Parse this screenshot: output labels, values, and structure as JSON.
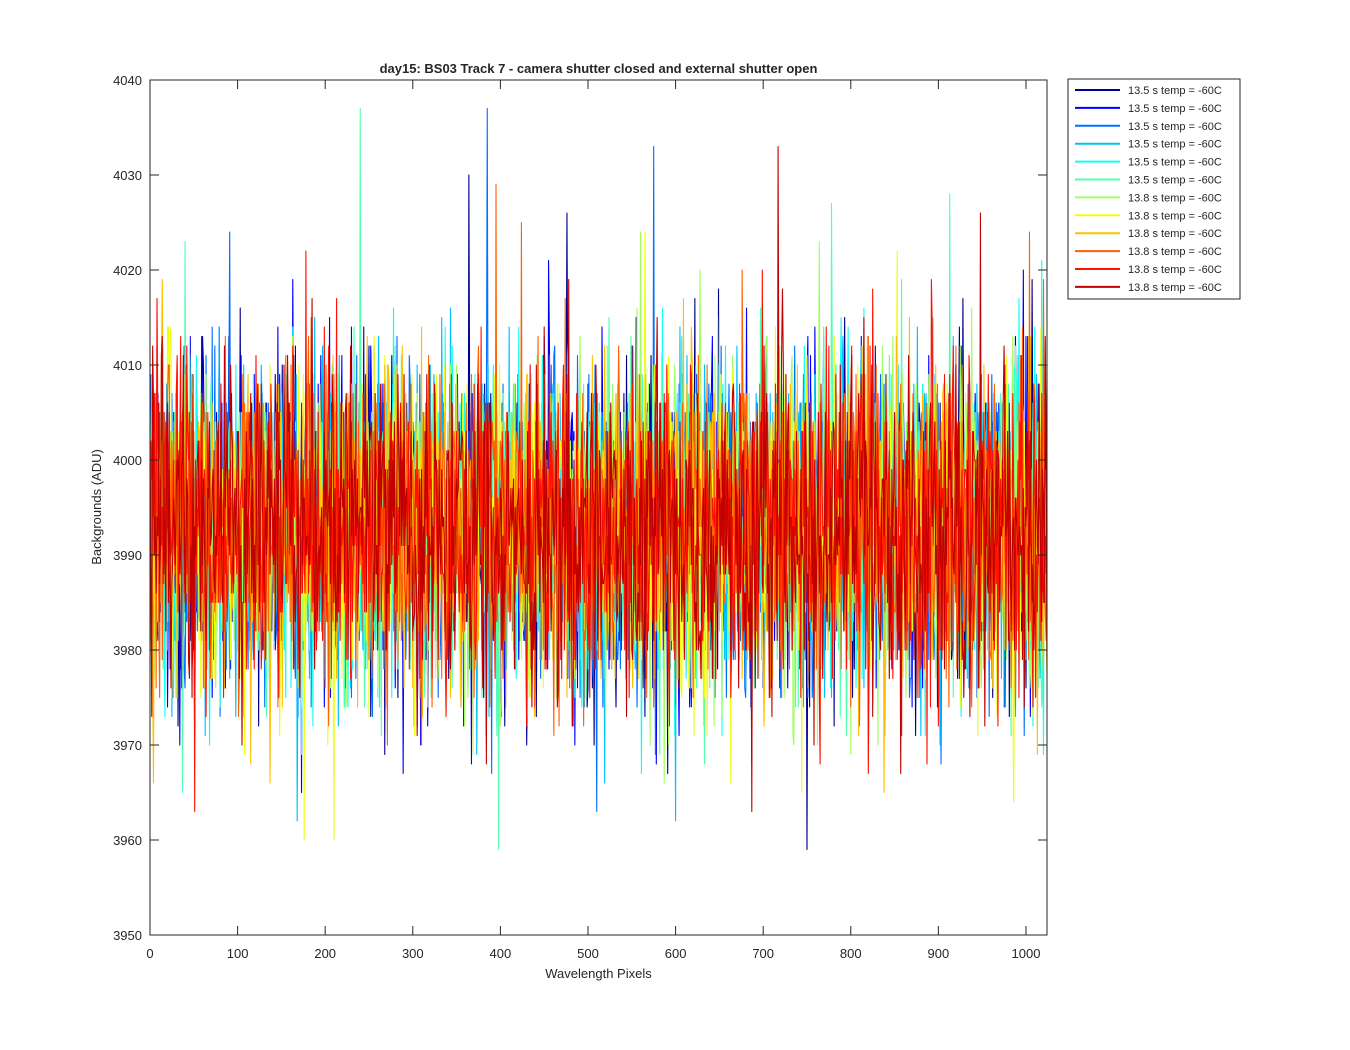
{
  "chart_data": {
    "type": "line",
    "title": "day15: BS03  Track 7 - camera shutter closed and external shutter open",
    "xlabel": "Wavelength Pixels",
    "ylabel": "Backgrounds (ADU)",
    "xlim": [
      0,
      1024
    ],
    "ylim": [
      3950,
      4040
    ],
    "xticks": [
      0,
      100,
      200,
      300,
      400,
      500,
      600,
      700,
      800,
      900,
      1000
    ],
    "yticks": [
      3950,
      3960,
      3970,
      3980,
      3990,
      4000,
      4010,
      4020,
      4030,
      4040
    ],
    "grid": false,
    "legend_position": "outside-top-right",
    "noise_model": {
      "mean": 3993,
      "std": 8.5,
      "min": 3958,
      "max": 4038
    },
    "series": [
      {
        "name": "13.5 s temp = -60C",
        "color": "#00008F",
        "seed": 11,
        "spikes": [
          {
            "x": 364,
            "y": 4030
          },
          {
            "x": 750,
            "y": 3959
          },
          {
            "x": 476,
            "y": 4026
          },
          {
            "x": 507,
            "y": 3970
          }
        ]
      },
      {
        "name": "13.5 s temp = -60C",
        "color": "#0000FF",
        "seed": 23,
        "spikes": [
          {
            "x": 173,
            "y": 3965
          },
          {
            "x": 289,
            "y": 3967
          },
          {
            "x": 455,
            "y": 4021
          }
        ]
      },
      {
        "name": "13.5 s temp = -60C",
        "color": "#0070FF",
        "seed": 37,
        "spikes": [
          {
            "x": 385,
            "y": 4037
          },
          {
            "x": 575,
            "y": 4033
          },
          {
            "x": 510,
            "y": 3963
          },
          {
            "x": 91,
            "y": 4024
          }
        ]
      },
      {
        "name": "13.5 s temp = -60C",
        "color": "#00BFFF",
        "seed": 41,
        "spikes": [
          {
            "x": 600,
            "y": 3962
          },
          {
            "x": 168,
            "y": 3962
          },
          {
            "x": 519,
            "y": 3966
          },
          {
            "x": 333,
            "y": 4015
          }
        ]
      },
      {
        "name": "13.5 s temp = -60C",
        "color": "#10FFEF",
        "seed": 53,
        "spikes": [
          {
            "x": 1018,
            "y": 4021
          },
          {
            "x": 836,
            "y": 3990
          }
        ]
      },
      {
        "name": "13.5 s temp = -60C",
        "color": "#50FFAF",
        "seed": 61,
        "spikes": [
          {
            "x": 240,
            "y": 4037
          },
          {
            "x": 913,
            "y": 4028
          },
          {
            "x": 37,
            "y": 3965
          },
          {
            "x": 778,
            "y": 4027
          },
          {
            "x": 40,
            "y": 4023
          }
        ]
      },
      {
        "name": "13.8 s temp = -60C",
        "color": "#9FFF60",
        "seed": 71,
        "spikes": [
          {
            "x": 764,
            "y": 4023
          },
          {
            "x": 560,
            "y": 4024
          },
          {
            "x": 628,
            "y": 4020
          }
        ]
      },
      {
        "name": "13.8 s temp = -60C",
        "color": "#EFFF10",
        "seed": 83,
        "spikes": [
          {
            "x": 176,
            "y": 3960
          },
          {
            "x": 210,
            "y": 3960
          },
          {
            "x": 986,
            "y": 3964
          },
          {
            "x": 565,
            "y": 4024
          }
        ]
      },
      {
        "name": "13.8 s temp = -60C",
        "color": "#FFBF00",
        "seed": 97,
        "spikes": [
          {
            "x": 4,
            "y": 3966
          },
          {
            "x": 838,
            "y": 3965
          },
          {
            "x": 137,
            "y": 3966
          }
        ]
      },
      {
        "name": "13.8 s temp = -60C",
        "color": "#FF6000",
        "seed": 101,
        "spikes": [
          {
            "x": 395,
            "y": 4029
          },
          {
            "x": 424,
            "y": 4025
          },
          {
            "x": 1004,
            "y": 4024
          }
        ]
      },
      {
        "name": "13.8 s temp = -60C",
        "color": "#FF1000",
        "seed": 113,
        "spikes": [
          {
            "x": 178,
            "y": 4022
          },
          {
            "x": 820,
            "y": 3967
          },
          {
            "x": 483,
            "y": 3981
          }
        ]
      },
      {
        "name": "13.8 s temp = -60C",
        "color": "#C00000",
        "seed": 127,
        "spikes": [
          {
            "x": 717,
            "y": 4033
          },
          {
            "x": 948,
            "y": 4026
          },
          {
            "x": 384,
            "y": 3968
          },
          {
            "x": 14,
            "y": 4013
          }
        ]
      }
    ]
  }
}
